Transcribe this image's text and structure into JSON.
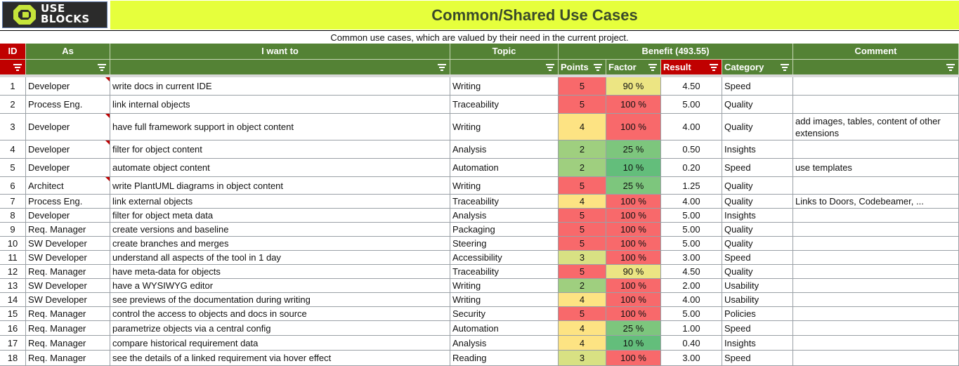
{
  "logo": {
    "line1": "USE",
    "line2": "BLOCKS"
  },
  "title": "Common/Shared Use Cases",
  "subtitle": "Common use cases, which are valued by their need in the current project.",
  "colors": {
    "header_green": "#548235",
    "header_red": "#c00000",
    "title_yellow": "#e6ff3c",
    "scale_red": "#f8696b",
    "scale_orange": "#f4a97a",
    "scale_yellow": "#fde383",
    "scale_lightgreen": "#c6dc84",
    "scale_green": "#63be7b"
  },
  "headers": {
    "id": "ID",
    "as": "As",
    "i_want_to": "I want to",
    "topic": "Topic",
    "benefit": "Benefit (493.55)",
    "points": "Points",
    "factor": "Factor",
    "result": "Result",
    "category": "Category",
    "comment": "Comment"
  },
  "rows": [
    {
      "id": "1",
      "as": "Developer",
      "want": "write docs in current IDE",
      "topic": "Writing",
      "points": "5",
      "factor": "90 %",
      "result": "4.50",
      "category": "Speed",
      "comment": "",
      "pc": "#f8696b",
      "fc": "#ece583"
    },
    {
      "id": "2",
      "as": "Process Eng.",
      "want": "link internal objects",
      "topic": "Traceability",
      "points": "5",
      "factor": "100 %",
      "result": "5.00",
      "category": "Quality",
      "comment": "",
      "pc": "#f8696b",
      "fc": "#f8696b"
    },
    {
      "id": "3",
      "as": "Developer",
      "want": "have full framework support in object content",
      "topic": "Writing",
      "points": "4",
      "factor": "100 %",
      "result": "4.00",
      "category": "Quality",
      "comment": "add images, tables, content of other extensions",
      "pc": "#fde383",
      "fc": "#f8696b"
    },
    {
      "id": "4",
      "as": "Developer",
      "want": "filter for object content",
      "topic": "Analysis",
      "points": "2",
      "factor": "25 %",
      "result": "0.50",
      "category": "Insights",
      "comment": "",
      "pc": "#9fcf7f",
      "fc": "#7dc67d"
    },
    {
      "id": "5",
      "as": "Developer",
      "want": "automate object content",
      "topic": "Automation",
      "points": "2",
      "factor": "10 %",
      "result": "0.20",
      "category": "Speed",
      "comment": "use templates",
      "pc": "#9fcf7f",
      "fc": "#63be7b"
    },
    {
      "id": "6",
      "as": "Architect",
      "want": "write PlantUML diagrams in object content",
      "topic": "Writing",
      "points": "5",
      "factor": "25 %",
      "result": "1.25",
      "category": "Quality",
      "comment": "",
      "pc": "#f8696b",
      "fc": "#7dc67d"
    },
    {
      "id": "7",
      "as": "Process Eng.",
      "want": "link external objects",
      "topic": "Traceability",
      "points": "4",
      "factor": "100 %",
      "result": "4.00",
      "category": "Quality",
      "comment": "Links to Doors, Codebeamer, ...",
      "pc": "#fde383",
      "fc": "#f8696b"
    },
    {
      "id": "8",
      "as": "Developer",
      "want": "filter for object meta data",
      "topic": "Analysis",
      "points": "5",
      "factor": "100 %",
      "result": "5.00",
      "category": "Insights",
      "comment": "",
      "pc": "#f8696b",
      "fc": "#f8696b"
    },
    {
      "id": "9",
      "as": "Req. Manager",
      "want": "create versions and baseline",
      "topic": "Packaging",
      "points": "5",
      "factor": "100 %",
      "result": "5.00",
      "category": "Quality",
      "comment": "",
      "pc": "#f8696b",
      "fc": "#f8696b"
    },
    {
      "id": "10",
      "as": "SW Developer",
      "want": "create branches and merges",
      "topic": "Steering",
      "points": "5",
      "factor": "100 %",
      "result": "5.00",
      "category": "Quality",
      "comment": "",
      "pc": "#f8696b",
      "fc": "#f8696b"
    },
    {
      "id": "11",
      "as": "SW Developer",
      "want": "understand all aspects of the tool in 1 day",
      "topic": "Accessibility",
      "points": "3",
      "factor": "100 %",
      "result": "3.00",
      "category": "Speed",
      "comment": "",
      "pc": "#d8e183",
      "fc": "#f8696b"
    },
    {
      "id": "12",
      "as": "Req. Manager",
      "want": "have meta-data for objects",
      "topic": "Traceability",
      "points": "5",
      "factor": "90 %",
      "result": "4.50",
      "category": "Quality",
      "comment": "",
      "pc": "#f8696b",
      "fc": "#ece583"
    },
    {
      "id": "13",
      "as": "SW Developer",
      "want": "have a WYSIWYG editor",
      "topic": "Writing",
      "points": "2",
      "factor": "100 %",
      "result": "2.00",
      "category": "Usability",
      "comment": "",
      "pc": "#9fcf7f",
      "fc": "#f8696b"
    },
    {
      "id": "14",
      "as": "SW Developer",
      "want": "see previews of the documentation during writing",
      "topic": "Writing",
      "points": "4",
      "factor": "100 %",
      "result": "4.00",
      "category": "Usability",
      "comment": "",
      "pc": "#fde383",
      "fc": "#f8696b"
    },
    {
      "id": "15",
      "as": "Req. Manager",
      "want": "control the access to objects and docs in source",
      "topic": "Security",
      "points": "5",
      "factor": "100 %",
      "result": "5.00",
      "category": "Policies",
      "comment": "",
      "pc": "#f8696b",
      "fc": "#f8696b"
    },
    {
      "id": "16",
      "as": "Req. Manager",
      "want": "parametrize objects via a central config",
      "topic": "Automation",
      "points": "4",
      "factor": "25 %",
      "result": "1.00",
      "category": "Speed",
      "comment": "",
      "pc": "#fde383",
      "fc": "#7dc67d"
    },
    {
      "id": "17",
      "as": "Req. Manager",
      "want": "compare historical requirement data",
      "topic": "Analysis",
      "points": "4",
      "factor": "10 %",
      "result": "0.40",
      "category": "Insights",
      "comment": "",
      "pc": "#fde383",
      "fc": "#63be7b"
    },
    {
      "id": "18",
      "as": "Req. Manager",
      "want": "see the details of a linked requirement via hover effect",
      "topic": "Reading",
      "points": "3",
      "factor": "100 %",
      "result": "3.00",
      "category": "Speed",
      "comment": "",
      "pc": "#d8e183",
      "fc": "#f8696b"
    }
  ]
}
